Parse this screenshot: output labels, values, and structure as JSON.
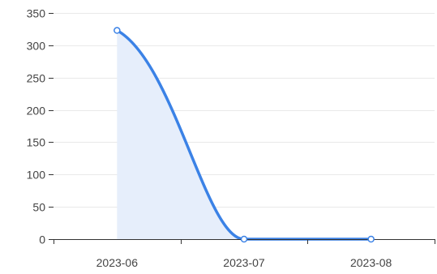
{
  "chart_data": {
    "type": "area",
    "categories": [
      "2023-06",
      "2023-07",
      "2023-08"
    ],
    "series": [
      {
        "values": [
          323,
          0,
          0
        ]
      }
    ],
    "ylim": [
      0,
      350
    ],
    "yticks": [
      0,
      50,
      100,
      150,
      200,
      250,
      300,
      350
    ],
    "grid": true,
    "legend": "none"
  },
  "colors": {
    "line": "#3b82e6",
    "area": "#e6eefb",
    "point_stroke": "#3b82e6"
  }
}
